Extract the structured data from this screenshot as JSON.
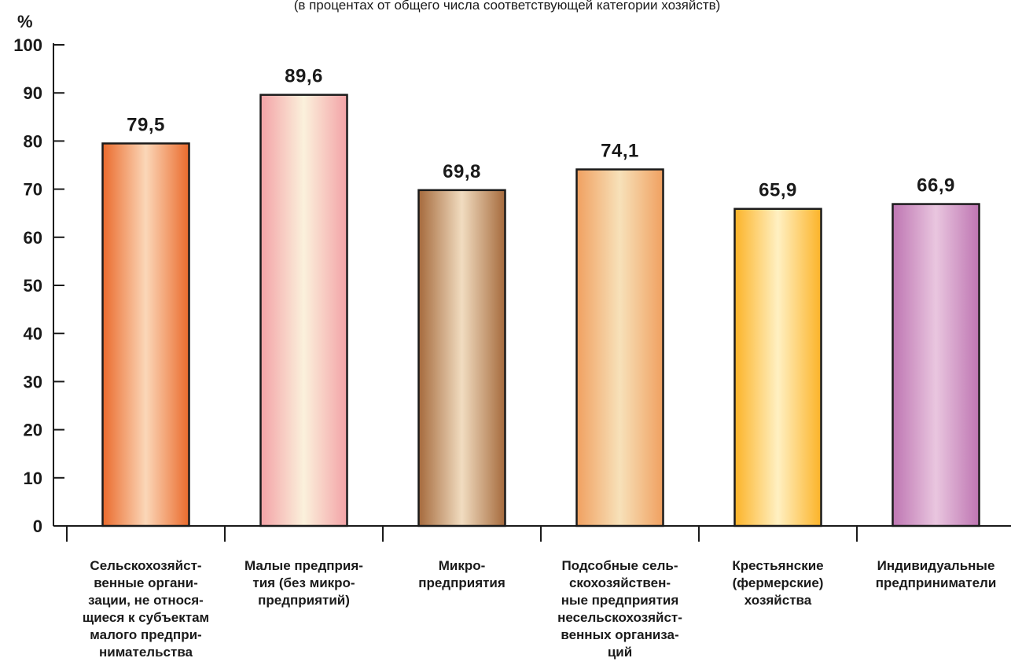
{
  "chart_data": {
    "type": "bar",
    "subtitle": "(в процентах от общего числа соответствующей категории хозяйств)",
    "unit_label": "%",
    "ylim": [
      0,
      100
    ],
    "yticks": [
      0,
      10,
      20,
      30,
      40,
      50,
      60,
      70,
      80,
      90,
      100
    ],
    "categories": [
      "Сельскохозяйст-\nвенные органи-\nзации, не относя-\nщиеся к субъектам\nмалого предпри-\nнимательства",
      "Малые предприя-\nтия (без микро-\nпредприятий)",
      "Микро-\nпредприятия",
      "Подсобные сель-\nскохозяйствен-\nные предприятия\nнесельскохозяйст-\nвенных организа-\nций",
      "Крестьянские\n(фермерские)\nхозяйства",
      "Индивидуальные\nпредприниматели"
    ],
    "values": [
      79.5,
      89.6,
      69.8,
      74.1,
      65.9,
      66.9
    ],
    "value_labels": [
      "79,5",
      "89,6",
      "69,8",
      "74,1",
      "65,9",
      "66,9"
    ],
    "bar_colors": [
      [
        "#ea6a2c",
        "#fbd7b8"
      ],
      [
        "#f3a2a6",
        "#fbf1dc"
      ],
      [
        "#a56a3c",
        "#f1dcc0"
      ],
      [
        "#f0a060",
        "#f7e1b9"
      ],
      [
        "#fcb328",
        "#fff0c2"
      ],
      [
        "#be75b2",
        "#e9c6df"
      ]
    ],
    "grid": false
  }
}
